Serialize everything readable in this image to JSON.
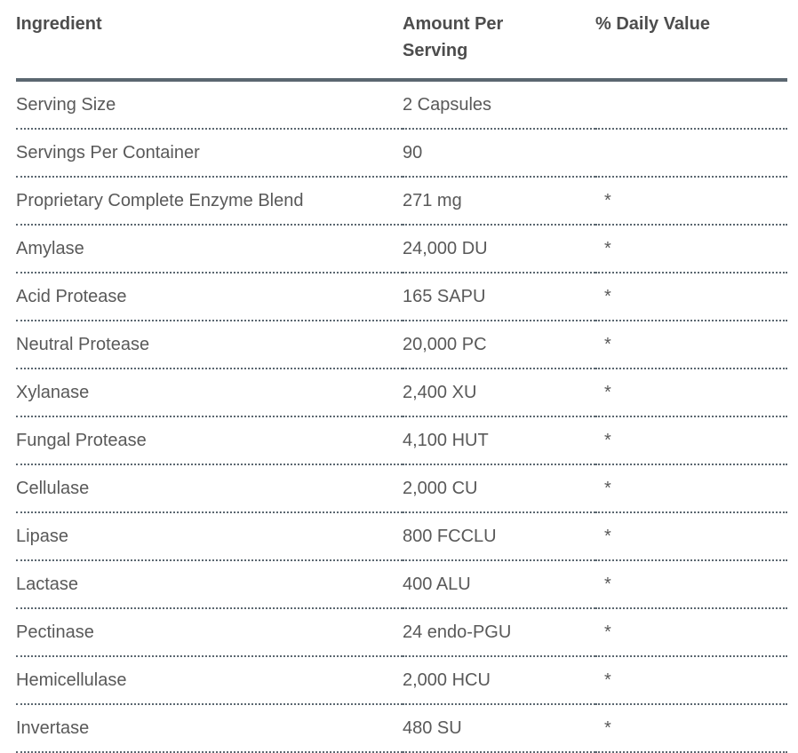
{
  "colors": {
    "rule_slate": "#5b6770",
    "header_text": "#4d4d4d",
    "body_text": "#595959",
    "background": "#ffffff"
  },
  "table": {
    "columns": [
      {
        "label": "Ingredient"
      },
      {
        "label": "Amount Per Serving"
      },
      {
        "label": "% Daily Value"
      }
    ],
    "rows": [
      {
        "ingredient": "Serving Size",
        "amount": "2 Capsules",
        "daily_value": ""
      },
      {
        "ingredient": "Servings Per Container",
        "amount": "90",
        "daily_value": ""
      },
      {
        "ingredient": "Proprietary Complete Enzyme Blend",
        "amount": "271 mg",
        "daily_value": "*"
      },
      {
        "ingredient": "Amylase",
        "amount": "24,000 DU",
        "daily_value": "*"
      },
      {
        "ingredient": "Acid Protease",
        "amount": "165 SAPU",
        "daily_value": "*"
      },
      {
        "ingredient": "Neutral Protease",
        "amount": "20,000 PC",
        "daily_value": "*"
      },
      {
        "ingredient": "Xylanase",
        "amount": "2,400 XU",
        "daily_value": "*"
      },
      {
        "ingredient": "Fungal Protease",
        "amount": "4,100 HUT",
        "daily_value": "*"
      },
      {
        "ingredient": "Cellulase",
        "amount": "2,000 CU",
        "daily_value": "*"
      },
      {
        "ingredient": "Lipase",
        "amount": "800 FCCLU",
        "daily_value": "*"
      },
      {
        "ingredient": "Lactase",
        "amount": "400 ALU",
        "daily_value": "*"
      },
      {
        "ingredient": "Pectinase",
        "amount": "24 endo-PGU",
        "daily_value": "*"
      },
      {
        "ingredient": "Hemicellulase",
        "amount": "2,000 HCU",
        "daily_value": "*"
      },
      {
        "ingredient": "Invertase",
        "amount": "480 SU",
        "daily_value": "*"
      }
    ]
  }
}
